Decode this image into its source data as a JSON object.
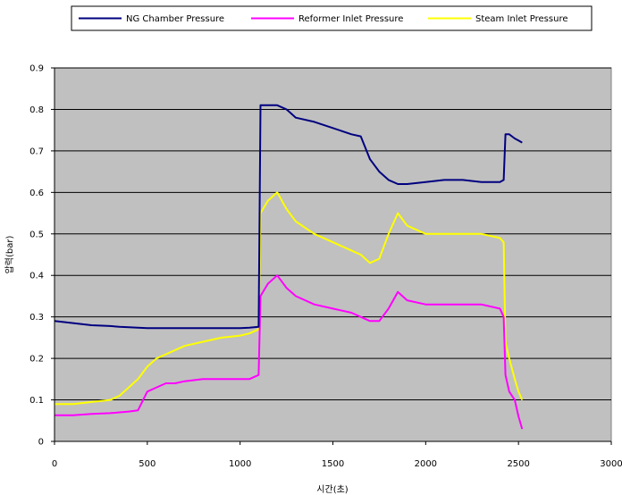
{
  "chart_data": {
    "type": "line",
    "title": "",
    "xlabel": "시간(초)",
    "ylabel": "압력(bar)",
    "xlim": [
      0,
      3000
    ],
    "ylim": [
      0,
      0.9
    ],
    "x_ticks": [
      0,
      500,
      1000,
      1500,
      2000,
      2500,
      3000
    ],
    "y_ticks": [
      0,
      0.1,
      0.2,
      0.3,
      0.4,
      0.5,
      0.6,
      0.7,
      0.8,
      0.9
    ],
    "x_tick_labels": [
      "0",
      "500",
      "1000",
      "1500",
      "2000",
      "2500",
      "3000"
    ],
    "y_tick_labels": [
      "0",
      "0.1",
      "0.2",
      "0.3",
      "0.4",
      "0.5",
      "0.6",
      "0.7",
      "0.8",
      "0.9"
    ],
    "grid": "horizontal",
    "plot_background": "#c0c0c0",
    "legend": {
      "position": "top",
      "entries": [
        "NG Chamber Pressure",
        "Reformer Inlet Pressure",
        "Steam Inlet Pressure"
      ]
    },
    "x": [
      0,
      100,
      200,
      300,
      350,
      400,
      450,
      500,
      550,
      600,
      650,
      700,
      800,
      900,
      1000,
      1050,
      1100,
      1110,
      1150,
      1200,
      1250,
      1300,
      1400,
      1500,
      1600,
      1650,
      1700,
      1750,
      1800,
      1850,
      1900,
      2000,
      2100,
      2200,
      2300,
      2400,
      2420,
      2430,
      2450,
      2480,
      2500,
      2520
    ],
    "series": [
      {
        "name": "NG Chamber Pressure",
        "color": "#000080",
        "values": [
          0.29,
          0.285,
          0.28,
          0.278,
          0.276,
          0.275,
          0.274,
          0.273,
          0.273,
          0.273,
          0.273,
          0.273,
          0.273,
          0.273,
          0.273,
          0.274,
          0.276,
          0.81,
          0.81,
          0.81,
          0.8,
          0.78,
          0.77,
          0.755,
          0.74,
          0.735,
          0.68,
          0.65,
          0.63,
          0.62,
          0.62,
          0.625,
          0.63,
          0.63,
          0.625,
          0.625,
          0.63,
          0.74,
          0.74,
          0.73,
          0.725,
          0.72
        ]
      },
      {
        "name": "Reformer Inlet Pressure",
        "color": "#ff00ff",
        "values": [
          0.063,
          0.063,
          0.066,
          0.068,
          0.07,
          0.072,
          0.075,
          0.12,
          0.13,
          0.14,
          0.14,
          0.145,
          0.15,
          0.15,
          0.15,
          0.15,
          0.16,
          0.35,
          0.38,
          0.4,
          0.37,
          0.35,
          0.33,
          0.32,
          0.31,
          0.3,
          0.29,
          0.29,
          0.32,
          0.36,
          0.34,
          0.33,
          0.33,
          0.33,
          0.33,
          0.32,
          0.3,
          0.16,
          0.12,
          0.1,
          0.06,
          0.03
        ]
      },
      {
        "name": "Steam Inlet Pressure",
        "color": "#ffff00",
        "values": [
          0.09,
          0.09,
          0.095,
          0.1,
          0.11,
          0.13,
          0.15,
          0.18,
          0.2,
          0.21,
          0.22,
          0.23,
          0.24,
          0.25,
          0.255,
          0.26,
          0.27,
          0.55,
          0.58,
          0.6,
          0.56,
          0.53,
          0.5,
          0.48,
          0.46,
          0.45,
          0.43,
          0.44,
          0.5,
          0.55,
          0.52,
          0.5,
          0.5,
          0.5,
          0.5,
          0.49,
          0.48,
          0.24,
          0.2,
          0.15,
          0.12,
          0.1
        ]
      }
    ]
  }
}
